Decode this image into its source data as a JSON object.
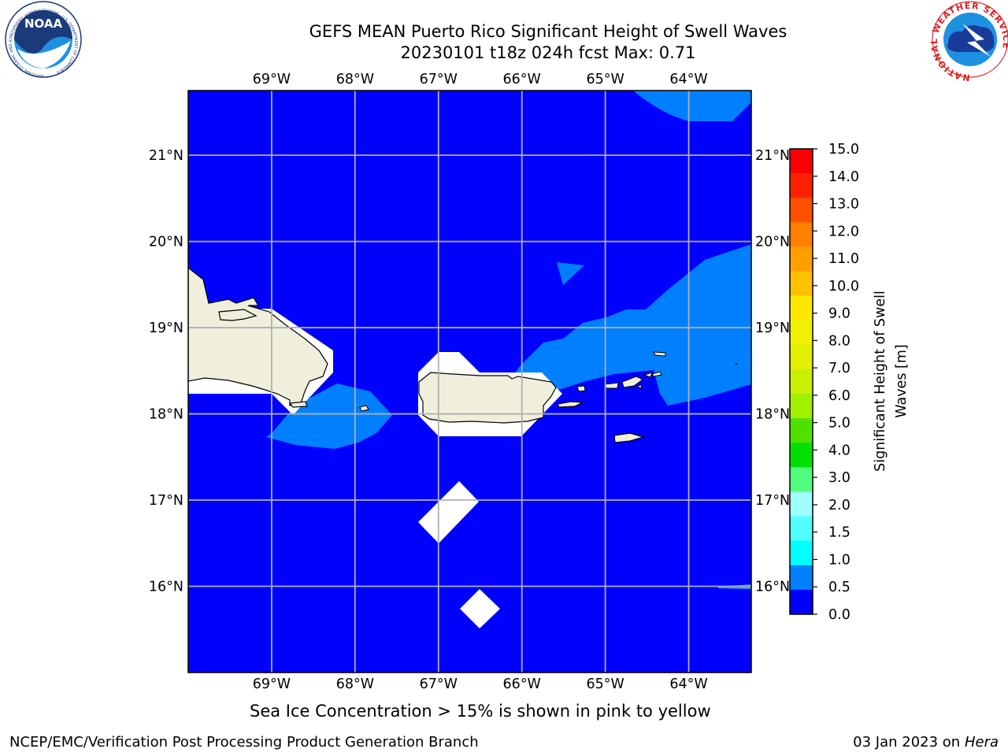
{
  "header": {
    "title_line1": "GEFS MEAN Puerto Rico Significant Height of Swell Waves",
    "title_line2": "20230101 t18z 024h fcst   Max: 0.71"
  },
  "logos": {
    "left": {
      "text": "NOAA",
      "ring_text": "NATIONAL OCEANIC AND ATMOSPHERIC ADMINISTRATION · U.S. DEPARTMENT OF COMMERCE"
    },
    "right": {
      "ring_text": "NATIONAL WEATHER SERVICE"
    }
  },
  "map": {
    "lon_ticks": [
      "69°W",
      "68°W",
      "67°W",
      "66°W",
      "65°W",
      "64°W"
    ],
    "lon_values": [
      -69,
      -68,
      -67,
      -66,
      -65,
      -64
    ],
    "lat_ticks": [
      "21°N",
      "20°N",
      "19°N",
      "18°N",
      "17°N",
      "16°N"
    ],
    "lat_values": [
      21,
      20,
      19,
      18,
      17,
      16
    ],
    "extent": {
      "lon_min": -70,
      "lon_max": -63.25,
      "lat_min": 15,
      "lat_max": 21.75
    },
    "colors": {
      "ocean_low": "#0000ff",
      "ocean_mid": "#0080ff",
      "land": "#efefdc",
      "mask": "#ffffff",
      "grid": "#b0b0b0"
    }
  },
  "colorbar": {
    "label": "Significant Height of Swell Waves [m]",
    "label_line1": "Significant Height of Swell",
    "label_line2": "Waves [m]",
    "ticks": [
      "15.0",
      "14.0",
      "13.0",
      "12.0",
      "11.0",
      "10.0",
      "9.0",
      "8.0",
      "7.0",
      "6.0",
      "5.0",
      "4.0",
      "3.0",
      "2.0",
      "1.5",
      "1.0",
      "0.5",
      "0.0"
    ],
    "colors_top_to_bottom": [
      "#ff0000",
      "#ff2000",
      "#ff5000",
      "#ff7f00",
      "#ffa000",
      "#ffc000",
      "#ffe800",
      "#f0f000",
      "#e0f000",
      "#c8f000",
      "#a0f000",
      "#50e000",
      "#00e000",
      "#50ff80",
      "#a0ffff",
      "#50ffff",
      "#00ffff",
      "#0080ff",
      "#0000ff"
    ]
  },
  "caption": "Sea Ice Concentration > 15% is shown in pink to yellow",
  "footer": {
    "left": "NCEP/EMC/Verification Post Processing Product Generation Branch",
    "date": "03 Jan 2023 on ",
    "host": "Hera"
  }
}
